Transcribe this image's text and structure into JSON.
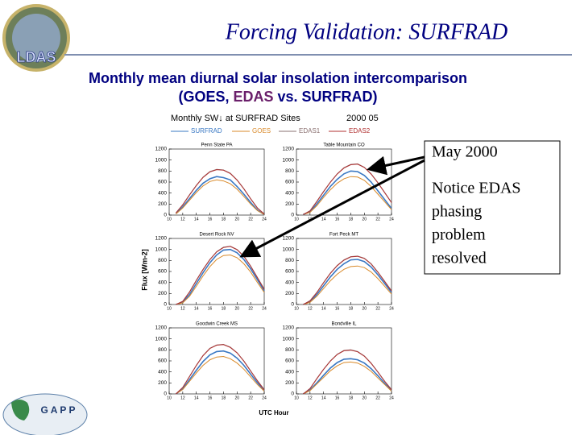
{
  "slide": {
    "logo": "LDAS",
    "title": "Forcing Validation: SURFRAD",
    "subtitle": "Monthly mean diurnal solar insolation intercomparison",
    "subtitle2": {
      "before": "(GOES,",
      "highlight": "EDAS",
      "after": "vs. SURFRAD)"
    },
    "note_date": "May 2000",
    "note_lines": [
      "Notice EDAS",
      "phasing",
      "problem",
      "resolved"
    ],
    "footer_logo": "G A P P"
  },
  "figure": {
    "title": "Monthly SW↓ at SURFRAD Sites",
    "date": "2000 05",
    "xlabel": "UTC Hour",
    "ylabel": "Flux [Wm-2]",
    "series": [
      {
        "name": "SURFRAD",
        "color": "#3a78c3"
      },
      {
        "name": "GOES",
        "color": "#d98a2a"
      },
      {
        "name": "EDAS1",
        "color": "#8a7070"
      },
      {
        "name": "EDAS2",
        "color": "#b03030"
      }
    ]
  },
  "chart_data": [
    {
      "type": "line",
      "title": "Penn State PA",
      "x": [
        11,
        12,
        13,
        14,
        15,
        16,
        17,
        18,
        19,
        20,
        21,
        22,
        23,
        24
      ],
      "xlim": [
        10,
        24
      ],
      "ylim": [
        0,
        1200
      ],
      "xticks": [
        10,
        12,
        14,
        16,
        18,
        20,
        22,
        24
      ],
      "yticks": [
        0,
        200,
        400,
        600,
        800,
        1000,
        1200
      ],
      "series": [
        {
          "values": [
            30,
            150,
            300,
            450,
            580,
            660,
            700,
            680,
            640,
            520,
            380,
            230,
            90,
            10
          ]
        },
        {
          "values": [
            20,
            130,
            270,
            410,
            530,
            610,
            640,
            620,
            570,
            470,
            340,
            200,
            80,
            10
          ]
        },
        {
          "values": [
            40,
            190,
            370,
            540,
            690,
            790,
            830,
            820,
            760,
            640,
            480,
            300,
            130,
            20
          ]
        },
        {
          "values": [
            40,
            185,
            365,
            535,
            685,
            785,
            825,
            815,
            755,
            635,
            475,
            295,
            125,
            20
          ]
        }
      ]
    },
    {
      "type": "line",
      "title": "Table Mountain CO",
      "x": [
        11,
        12,
        13,
        14,
        15,
        16,
        17,
        18,
        19,
        20,
        21,
        22,
        23,
        24
      ],
      "xlim": [
        10,
        24
      ],
      "ylim": [
        0,
        1200
      ],
      "xticks": [
        10,
        12,
        14,
        16,
        18,
        20,
        22,
        24
      ],
      "yticks": [
        0,
        200,
        400,
        600,
        800,
        1000,
        1200
      ],
      "series": [
        {
          "values": [
            10,
            60,
            200,
            360,
            520,
            650,
            750,
            800,
            790,
            720,
            600,
            440,
            280,
            120
          ]
        },
        {
          "values": [
            10,
            50,
            170,
            320,
            460,
            580,
            660,
            700,
            690,
            630,
            520,
            380,
            240,
            100
          ]
        },
        {
          "values": [
            10,
            80,
            250,
            430,
            600,
            750,
            860,
            920,
            930,
            870,
            750,
            590,
            410,
            230
          ]
        },
        {
          "values": [
            10,
            75,
            245,
            425,
            595,
            745,
            855,
            915,
            925,
            865,
            745,
            585,
            405,
            225
          ]
        }
      ]
    },
    {
      "type": "line",
      "title": "Desert Rock NV",
      "x": [
        11,
        12,
        13,
        14,
        15,
        16,
        17,
        18,
        19,
        20,
        21,
        22,
        23,
        24
      ],
      "xlim": [
        10,
        24
      ],
      "ylim": [
        0,
        1200
      ],
      "xticks": [
        10,
        12,
        14,
        16,
        18,
        20,
        22,
        24
      ],
      "yticks": [
        0,
        200,
        400,
        600,
        800,
        1000,
        1200
      ],
      "series": [
        {
          "values": [
            0,
            40,
            180,
            380,
            580,
            760,
            900,
            990,
            1000,
            940,
            820,
            650,
            450,
            250
          ]
        },
        {
          "values": [
            0,
            30,
            150,
            330,
            520,
            690,
            820,
            890,
            900,
            850,
            740,
            590,
            400,
            220
          ]
        },
        {
          "values": [
            0,
            60,
            230,
            440,
            640,
            820,
            960,
            1040,
            1060,
            1000,
            880,
            700,
            490,
            280
          ]
        },
        {
          "values": [
            0,
            55,
            225,
            435,
            635,
            815,
            955,
            1035,
            1055,
            995,
            875,
            695,
            485,
            275
          ]
        }
      ]
    },
    {
      "type": "line",
      "title": "Fort Peck MT",
      "x": [
        11,
        12,
        13,
        14,
        15,
        16,
        17,
        18,
        19,
        20,
        21,
        22,
        23,
        24
      ],
      "xlim": [
        10,
        24
      ],
      "ylim": [
        0,
        1200
      ],
      "xticks": [
        10,
        12,
        14,
        16,
        18,
        20,
        22,
        24
      ],
      "yticks": [
        0,
        200,
        400,
        600,
        800,
        1000,
        1200
      ],
      "series": [
        {
          "values": [
            0,
            50,
            180,
            340,
            500,
            640,
            740,
            810,
            820,
            780,
            680,
            540,
            380,
            220
          ]
        },
        {
          "values": [
            0,
            40,
            150,
            290,
            430,
            550,
            640,
            690,
            700,
            670,
            590,
            470,
            330,
            190
          ]
        },
        {
          "values": [
            0,
            70,
            220,
            400,
            570,
            710,
            810,
            870,
            880,
            840,
            740,
            590,
            420,
            250
          ]
        },
        {
          "values": [
            0,
            65,
            215,
            395,
            565,
            705,
            805,
            865,
            875,
            835,
            735,
            585,
            415,
            245
          ]
        }
      ]
    },
    {
      "type": "line",
      "title": "Goodwin Creek MS",
      "x": [
        11,
        12,
        13,
        14,
        15,
        16,
        17,
        18,
        19,
        20,
        21,
        22,
        23,
        24
      ],
      "xlim": [
        10,
        24
      ],
      "ylim": [
        0,
        1200
      ],
      "xticks": [
        10,
        12,
        14,
        16,
        18,
        20,
        22,
        24
      ],
      "yticks": [
        0,
        200,
        400,
        600,
        800,
        1000,
        1200
      ],
      "series": [
        {
          "values": [
            0,
            90,
            260,
            430,
            590,
            710,
            770,
            780,
            740,
            650,
            520,
            360,
            200,
            60
          ]
        },
        {
          "values": [
            0,
            80,
            230,
            380,
            520,
            620,
            670,
            680,
            640,
            560,
            450,
            310,
            170,
            50
          ]
        },
        {
          "values": [
            0,
            120,
            320,
            520,
            700,
            830,
            890,
            900,
            850,
            750,
            600,
            420,
            240,
            80
          ]
        },
        {
          "values": [
            0,
            115,
            315,
            515,
            695,
            825,
            885,
            895,
            845,
            745,
            595,
            415,
            235,
            75
          ]
        }
      ]
    },
    {
      "type": "line",
      "title": "Bondville IL",
      "x": [
        11,
        12,
        13,
        14,
        15,
        16,
        17,
        18,
        19,
        20,
        21,
        22,
        23,
        24
      ],
      "xlim": [
        10,
        24
      ],
      "ylim": [
        0,
        1200
      ],
      "xticks": [
        10,
        12,
        14,
        16,
        18,
        20,
        22,
        24
      ],
      "yticks": [
        0,
        200,
        400,
        600,
        800,
        1000,
        1200
      ],
      "series": [
        {
          "values": [
            0,
            70,
            200,
            340,
            470,
            570,
            630,
            640,
            620,
            560,
            460,
            330,
            190,
            60
          ]
        },
        {
          "values": [
            0,
            60,
            180,
            300,
            420,
            510,
            570,
            580,
            560,
            500,
            410,
            290,
            170,
            50
          ]
        },
        {
          "values": [
            0,
            100,
            280,
            450,
            600,
            720,
            790,
            800,
            770,
            690,
            560,
            400,
            230,
            80
          ]
        },
        {
          "values": [
            0,
            95,
            275,
            445,
            595,
            715,
            785,
            795,
            765,
            685,
            555,
            395,
            225,
            75
          ]
        }
      ]
    }
  ]
}
